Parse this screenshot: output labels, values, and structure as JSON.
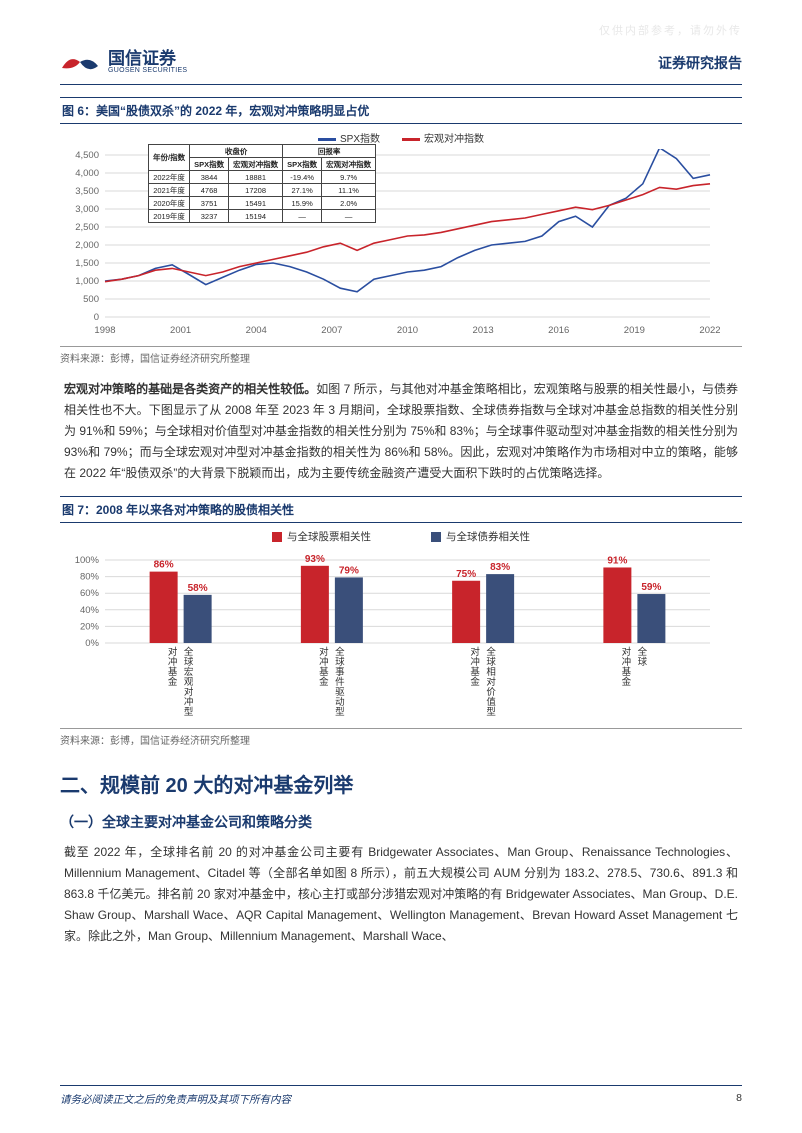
{
  "watermark": "仅供内部参考，请勿外传",
  "header": {
    "company_zh": "国信证券",
    "company_en": "GUOSEN SECURITIES",
    "right": "证券研究报告",
    "logo_colors": {
      "red": "#c8242b",
      "blue": "#1a3a6e"
    }
  },
  "fig6": {
    "title": "图 6：美国“股债双杀”的 2022 年，宏观对冲策略明显占优",
    "source": "资料来源：彭博，国信证券经济研究所整理",
    "legend": {
      "a": "SPX指数",
      "b": "宏观对冲指数"
    },
    "colors": {
      "spx": "#2a4ea0",
      "macro": "#c8242b",
      "grid": "#d9d9d9",
      "axis": "#666",
      "text": "#333"
    },
    "y": {
      "min": 0,
      "max": 4500,
      "step": 500
    },
    "x_labels": [
      "1998",
      "2001",
      "2004",
      "2007",
      "2010",
      "2013",
      "2016",
      "2019",
      "2022"
    ],
    "table": {
      "headcols": [
        "年份/指数",
        "SPX指数",
        "宏观对冲指数",
        "SPX指数",
        "宏观对冲指数"
      ],
      "group1": "收盘价",
      "group2": "回报率",
      "rows": [
        [
          "2022年度",
          "3844",
          "18881",
          "-19.4%",
          "9.7%"
        ],
        [
          "2021年度",
          "4768",
          "17208",
          "27.1%",
          "11.1%"
        ],
        [
          "2020年度",
          "3751",
          "15491",
          "15.9%",
          "2.0%"
        ],
        [
          "2019年度",
          "3237",
          "15194",
          "—",
          "—"
        ]
      ]
    },
    "series": {
      "spx": [
        1000,
        1050,
        1150,
        1350,
        1450,
        1180,
        900,
        1100,
        1300,
        1460,
        1500,
        1400,
        1250,
        1050,
        800,
        700,
        1050,
        1150,
        1250,
        1300,
        1400,
        1650,
        1850,
        2000,
        2050,
        2100,
        2250,
        2650,
        2800,
        2500,
        3100,
        3300,
        3700,
        4700,
        4400,
        3850,
        3950
      ],
      "macro": [
        980,
        1050,
        1150,
        1300,
        1350,
        1250,
        1150,
        1250,
        1400,
        1500,
        1600,
        1700,
        1800,
        1950,
        2050,
        1850,
        2050,
        2150,
        2250,
        2280,
        2350,
        2450,
        2550,
        2650,
        2700,
        2750,
        2850,
        2950,
        3050,
        2980,
        3100,
        3250,
        3400,
        3600,
        3550,
        3650,
        3700
      ]
    }
  },
  "para1": {
    "bold": "宏观对冲策略的基础是各类资产的相关性较低。",
    "rest": "如图 7 所示，与其他对冲基金策略相比，宏观策略与股票的相关性最小，与债券相关性也不大。下图显示了从 2008 年至 2023 年 3 月期间，全球股票指数、全球债券指数与全球对冲基金总指数的相关性分别为 91%和 59%；与全球相对价值型对冲基金指数的相关性分别为 75%和 83%；与全球事件驱动型对冲基金指数的相关性分别为 93%和 79%；而与全球宏观对冲型对冲基金指数的相关性为 86%和 58%。因此，宏观对冲策略作为市场相对中立的策略，能够在 2022 年“股债双杀”的大背景下脱颖而出，成为主要传统金融资产遭受大面积下跌时的占优策略选择。"
  },
  "fig7": {
    "title": "图 7：2008 年以来各对冲策略的股债相关性",
    "source": "资料来源：彭博，国信证券经济研究所整理",
    "legend": {
      "a": "与全球股票相关性",
      "b": "与全球债券相关性"
    },
    "colors": {
      "a": "#c8242b",
      "b": "#3a4f7a",
      "grid": "#d9d9d9",
      "axis": "#666",
      "label": "#c8242b"
    },
    "y": {
      "min": 0,
      "max": 100,
      "step": 20,
      "format": "%"
    },
    "categories": [
      "全球宏观对冲型\n对冲基金",
      "全球事件驱动型\n对冲基金",
      "全球相对价值型\n对冲基金",
      "全球\n对冲基金"
    ],
    "cat_vertical": [
      [
        "对",
        "冲",
        "基",
        "金"
      ],
      [
        "全",
        "球",
        "宏",
        "观",
        "对",
        "冲",
        "型"
      ],
      [
        "对",
        "冲",
        "基",
        "金"
      ],
      [
        "全",
        "球",
        "事",
        "件",
        "驱",
        "动",
        "型"
      ],
      [
        "对",
        "冲",
        "基",
        "金"
      ],
      [
        "全",
        "球",
        "相",
        "对",
        "价",
        "值",
        "型"
      ],
      [
        "对",
        "冲",
        "基",
        "金"
      ],
      [
        "全",
        "球"
      ]
    ],
    "series": {
      "a": [
        86,
        93,
        75,
        91
      ],
      "b": [
        58,
        79,
        83,
        59
      ]
    }
  },
  "h2": "二、规模前 20 大的对冲基金列举",
  "h3": "（一）全球主要对冲基金公司和策略分类",
  "para2": "截至 2022 年，全球排名前 20 的对冲基金公司主要有 Bridgewater Associates、Man Group、Renaissance Technologies、Millennium Management、Citadel 等（全部名单如图 8 所示），前五大规模公司 AUM 分别为 183.2、278.5、730.6、891.3 和 863.8 千亿美元。排名前 20 家对冲基金中，核心主打或部分涉猎宏观对冲策略的有 Bridgewater Associates、Man Group、D.E. Shaw Group、Marshall Wace、AQR Capital Management、Wellington Management、Brevan Howard Asset Management 七家。除此之外，Man Group、Millennium Management、Marshall Wace、",
  "footer": {
    "disclaimer": "请务必阅读正文之后的免责声明及其项下所有内容",
    "page": "8"
  }
}
